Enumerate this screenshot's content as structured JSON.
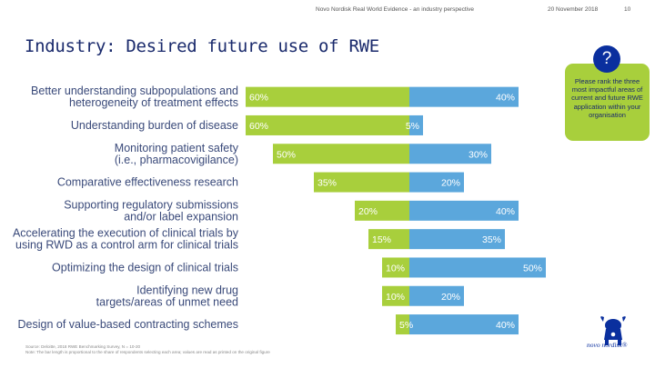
{
  "header": {
    "doc_title": "Novo Nordisk Real World Evidence - an industry perspective",
    "date": "20 November 2018",
    "page": "10"
  },
  "slide_title": "Industry:  Desired future use of RWE",
  "callout": {
    "icon": "question-mark",
    "symbol": "?",
    "text": "Please rank the three most impactful areas of current and future RWE application within your organisation"
  },
  "footnote": {
    "line1": "Source: Deloitte, 2018 RWE Benchmarking Survey, N = 10-20",
    "line2": "Note: The bar length is proportional to the share of respondents selecting each area; values are read as printed on the original figure"
  },
  "logo": {
    "text": "novo nordisk",
    "mark": "®"
  },
  "colors": {
    "left_series": "#a8cf3c",
    "right_series": "#5ba7dc",
    "title": "#1a2a6c",
    "text": "#3a4a7a"
  },
  "chart_data": {
    "type": "bar",
    "layout": "diverging-horizontal",
    "title": "Industry:  Desired future use of RWE",
    "categories": [
      [
        "Better understanding subpopulations and",
        "heterogeneity of treatment effects"
      ],
      [
        "Understanding burden of disease"
      ],
      [
        "Monitoring patient safety",
        "(i.e., pharmacovigilance)"
      ],
      [
        "Comparative effectiveness research"
      ],
      [
        "Supporting regulatory submissions",
        "and/or label expansion"
      ],
      [
        "Accelerating the execution of clinical trials by",
        "using RWD as a control arm for clinical trials"
      ],
      [
        "Optimizing the design of clinical trials"
      ],
      [
        "Identifying new drug",
        "targets/areas of unmet need"
      ],
      [
        "Design of value-based contracting schemes"
      ]
    ],
    "series": [
      {
        "name": "left (green)",
        "color": "#a8cf3c",
        "values": [
          60,
          60,
          50,
          35,
          20,
          15,
          10,
          10,
          5
        ]
      },
      {
        "name": "right (blue)",
        "color": "#5ba7dc",
        "values": [
          40,
          5,
          30,
          20,
          40,
          35,
          50,
          20,
          40
        ]
      }
    ],
    "value_suffix": "%",
    "xlim": [
      0,
      100
    ],
    "legend": "none"
  }
}
